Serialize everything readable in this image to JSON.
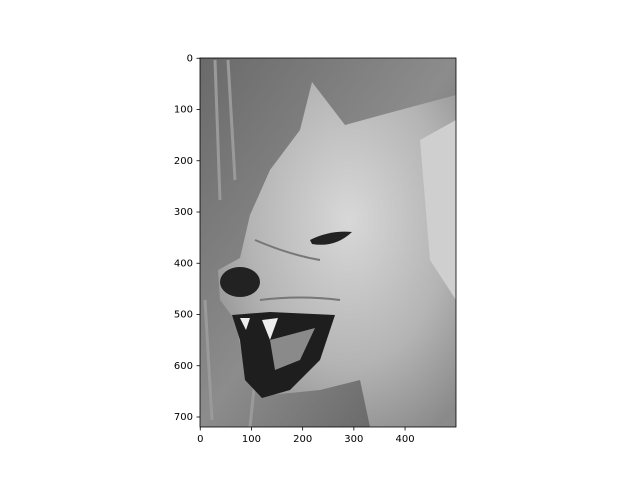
{
  "chart_data": {
    "type": "image",
    "cmap": "gray",
    "xlim": [
      -0.5,
      499.5
    ],
    "ylim": [
      719.5,
      -0.5
    ],
    "xticks": [
      0,
      100,
      200,
      300,
      400
    ],
    "yticks": [
      0,
      100,
      200,
      300,
      400,
      500,
      600,
      700
    ]
  }
}
